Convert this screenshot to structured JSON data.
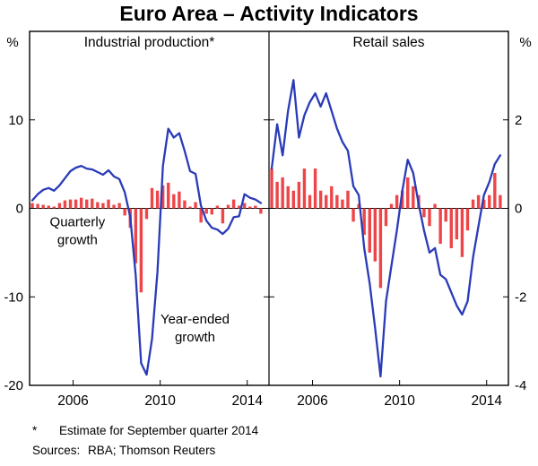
{
  "title": "Euro Area – Activity Indicators",
  "colors": {
    "red": "#ee4548",
    "blue": "#2a3bb8",
    "axis": "#000000"
  },
  "footnotes": {
    "star_marker": "*",
    "star_text": "Estimate for September quarter 2014",
    "sources_label": "Sources:",
    "sources_text": "RBA; Thomson Reuters"
  },
  "chart_data": {
    "type": "bar",
    "subtype": "combo-bar-line-two-panels",
    "x_domain": [
      2004,
      2015
    ],
    "x_ticks": [
      2006,
      2010,
      2014
    ],
    "x_tick_labels": [
      "2006",
      "2010",
      "2014"
    ],
    "quarters_start": 2004.125,
    "quarter_step": 0.25,
    "grid": "off",
    "legend": "in-chart-annotations",
    "panels": [
      {
        "title": "Industrial production*",
        "unit": "%",
        "ylim": [
          -20,
          20
        ],
        "yticks": [
          10,
          0,
          -10,
          -20
        ],
        "ytick_labels": [
          "10",
          "0",
          "-10",
          "-20"
        ],
        "bar_series": {
          "name": "Quarterly growth",
          "color_key": "red",
          "values": [
            0.6,
            0.5,
            0.4,
            0.3,
            0.2,
            0.6,
            0.9,
            1.0,
            1.0,
            1.2,
            1.0,
            1.1,
            0.7,
            0.6,
            1.0,
            0.4,
            0.6,
            -0.8,
            -2.2,
            -6.2,
            -9.5,
            -1.2,
            2.3,
            2.0,
            2.6,
            2.9,
            1.6,
            1.9,
            0.9,
            0.2,
            0.7,
            -1.6,
            -0.6,
            -0.7,
            0.3,
            -1.7,
            0.4,
            1.0,
            0.3,
            0.6,
            0.2,
            0.3,
            -0.6
          ]
        },
        "line_series": {
          "name": "Year-ended growth",
          "color_key": "blue",
          "values": [
            0.9,
            1.6,
            2.1,
            2.3,
            2.0,
            2.6,
            3.4,
            4.2,
            4.6,
            4.8,
            4.5,
            4.4,
            4.1,
            3.8,
            4.3,
            3.6,
            3.3,
            1.8,
            -1.0,
            -7.5,
            -17.5,
            -18.8,
            -14.8,
            -7.2,
            4.8,
            9.0,
            8.0,
            8.5,
            6.5,
            4.2,
            3.9,
            0.3,
            -1.4,
            -2.2,
            -2.4,
            -2.9,
            -2.3,
            -1.0,
            -0.9,
            1.6,
            1.2,
            1.0,
            0.6
          ]
        },
        "annotations": [
          {
            "lines": [
              "Quarterly",
              "growth"
            ],
            "x": 2006.2,
            "y": -2.0,
            "color_key": "red"
          },
          {
            "lines": [
              "Year-ended",
              "growth"
            ],
            "x": 2011.6,
            "y": -13.0,
            "color_key": "blue"
          }
        ]
      },
      {
        "title": "Retail sales",
        "unit": "%",
        "ylim": [
          -4,
          4
        ],
        "yticks": [
          2,
          0,
          -2,
          -4
        ],
        "ytick_labels": [
          "2",
          "0",
          "-2",
          "-4"
        ],
        "bar_series": {
          "name": "Quarterly growth",
          "color_key": "red",
          "values": [
            0.9,
            0.6,
            0.7,
            0.5,
            0.4,
            0.6,
            0.9,
            0.3,
            0.9,
            0.4,
            0.3,
            0.5,
            0.3,
            0.2,
            0.4,
            -0.3,
            0.1,
            -0.6,
            -1.0,
            -1.2,
            -1.8,
            -0.4,
            0.1,
            0.3,
            0.4,
            0.7,
            0.5,
            0.3,
            -0.2,
            -0.4,
            0.1,
            -0.8,
            -0.3,
            -0.9,
            -0.7,
            -1.1,
            -0.5,
            0.2,
            0.3,
            0.2,
            0.3,
            0.8,
            0.3
          ]
        },
        "line_series": {
          "name": "Year-ended growth",
          "color_key": "blue",
          "values": [
            0.9,
            1.9,
            1.2,
            2.2,
            2.9,
            1.6,
            2.1,
            2.4,
            2.6,
            2.3,
            2.6,
            2.2,
            1.8,
            1.5,
            1.3,
            0.5,
            0.3,
            -0.9,
            -1.7,
            -2.7,
            -3.8,
            -2.1,
            -1.3,
            -0.5,
            0.4,
            1.1,
            0.8,
            0.1,
            -0.5,
            -1.0,
            -0.9,
            -1.5,
            -1.6,
            -1.9,
            -2.2,
            -2.4,
            -2.1,
            -1.1,
            -0.4,
            0.3,
            0.6,
            1.0,
            1.2
          ]
        },
        "annotations": []
      }
    ]
  }
}
